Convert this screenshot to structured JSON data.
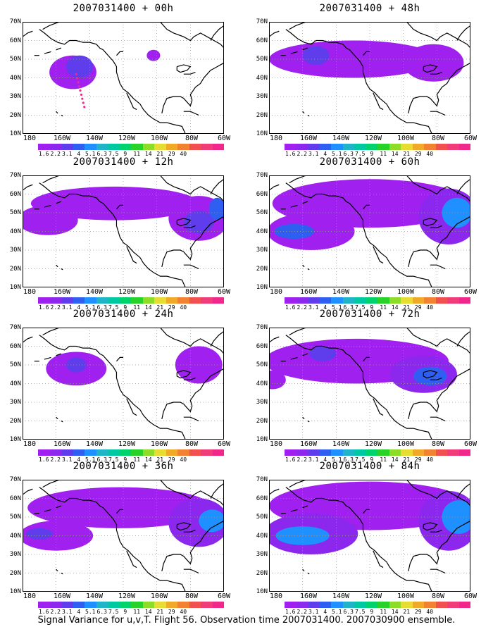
{
  "panels": [
    {
      "title": "2007031400 + 00h",
      "col": 0,
      "row": 0,
      "intensity": 0
    },
    {
      "title": "2007031400 + 48h",
      "col": 1,
      "row": 0,
      "intensity": 4
    },
    {
      "title": "2007031400 + 12h",
      "col": 0,
      "row": 1,
      "intensity": 1
    },
    {
      "title": "2007031400 + 60h",
      "col": 1,
      "row": 1,
      "intensity": 5
    },
    {
      "title": "2007031400 + 24h",
      "col": 0,
      "row": 2,
      "intensity": 2
    },
    {
      "title": "2007031400 + 72h",
      "col": 1,
      "row": 2,
      "intensity": 6
    },
    {
      "title": "2007031400 + 36h",
      "col": 0,
      "row": 3,
      "intensity": 3
    },
    {
      "title": "2007031400 + 84h",
      "col": 1,
      "row": 3,
      "intensity": 7
    }
  ],
  "lat_labels": [
    "70N",
    "60N",
    "50N",
    "40N",
    "30N",
    "20N",
    "10N"
  ],
  "lon_labels": [
    "180",
    "160W",
    "140W",
    "120W",
    "100W",
    "80W",
    "60W"
  ],
  "colorbar": {
    "colors": [
      "#a020f0",
      "#8c28ee",
      "#5f3cec",
      "#2f5ff0",
      "#1e90ff",
      "#20b4c8",
      "#00c8a0",
      "#00d26e",
      "#28d228",
      "#8cdc28",
      "#e6dc32",
      "#f0aa28",
      "#f08232",
      "#f05050",
      "#f03c78",
      "#f0288c"
    ],
    "labels": [
      "1.6",
      "2.2",
      "3.1",
      "4",
      "5.1",
      "6.3",
      "7.5",
      "9",
      "11",
      "14",
      "21",
      "29",
      "40"
    ]
  },
  "footer": "Signal Variance for u,v,T. Flight 56. Observation time 2007031400. 2007030900 ensemble."
}
